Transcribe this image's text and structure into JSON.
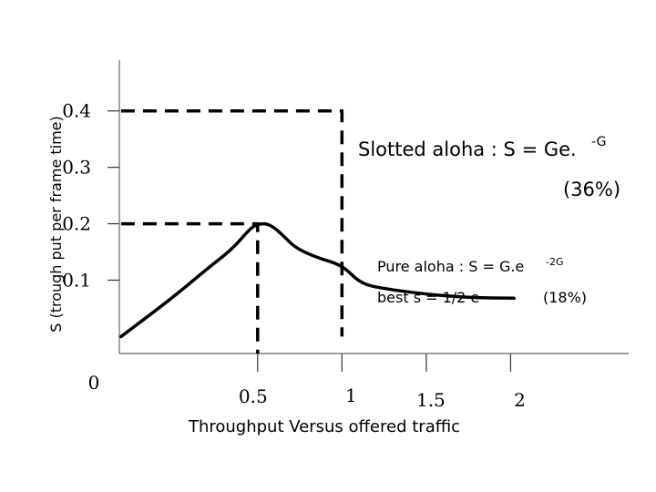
{
  "chart_data": {
    "type": "line",
    "title": "",
    "xlabel": "Throughput Versus offered traffic",
    "ylabel": "S (trough put per frame time)",
    "xlim": [
      -0.32,
      2.7
    ],
    "ylim": [
      -0.03,
      0.49
    ],
    "x_ticks": [
      {
        "value": 0.5,
        "label": "0.5"
      },
      {
        "value": 1,
        "label": "1"
      },
      {
        "value": 1.5,
        "label": "1.5"
      },
      {
        "value": 2,
        "label": "2"
      }
    ],
    "y_ticks": [
      {
        "value": 0,
        "label": "0"
      },
      {
        "value": 0.1,
        "label": "0.1"
      },
      {
        "value": 0.2,
        "label": "0.2"
      },
      {
        "value": 0.3,
        "label": "0.3"
      },
      {
        "value": 0.4,
        "label": "0.4"
      }
    ],
    "series": [
      {
        "values": [
          {
            "x": -0.31,
            "y": 0.0
          },
          {
            "x": 0.0,
            "y": 0.07
          },
          {
            "x": 0.2,
            "y": 0.12
          },
          {
            "x": 0.35,
            "y": 0.155
          },
          {
            "x": 0.45,
            "y": 0.19
          },
          {
            "x": 0.5,
            "y": 0.2
          },
          {
            "x": 0.57,
            "y": 0.2
          },
          {
            "x": 0.65,
            "y": 0.18
          },
          {
            "x": 0.72,
            "y": 0.158
          },
          {
            "x": 0.85,
            "y": 0.14
          },
          {
            "x": 1.0,
            "y": 0.127
          },
          {
            "x": 1.1,
            "y": 0.097
          },
          {
            "x": 1.2,
            "y": 0.087
          },
          {
            "x": 1.5,
            "y": 0.075
          },
          {
            "x": 1.75,
            "y": 0.069
          },
          {
            "x": 2.02,
            "y": 0.068
          }
        ]
      }
    ],
    "reference_lines": [
      {
        "points": [
          {
            "x": -0.31,
            "y": 0.4
          },
          {
            "x": 1.0,
            "y": 0.4
          },
          {
            "x": 1.0,
            "y": 0.0
          }
        ]
      },
      {
        "points": [
          {
            "x": -0.31,
            "y": 0.2
          },
          {
            "x": 0.5,
            "y": 0.2
          },
          {
            "x": 0.5,
            "y": -0.03
          }
        ]
      }
    ],
    "annotations": {
      "slotted_main": "Slotted aloha : S = Ge.",
      "slotted_exp": "-G",
      "slotted_pct": "(36%)",
      "pure_main": "Pure aloha : S = G.e",
      "pure_exp": "-2G",
      "pure_best": "best s = 1/2 e",
      "pure_pct": "(18%)"
    },
    "grid": false,
    "legend": "none"
  }
}
